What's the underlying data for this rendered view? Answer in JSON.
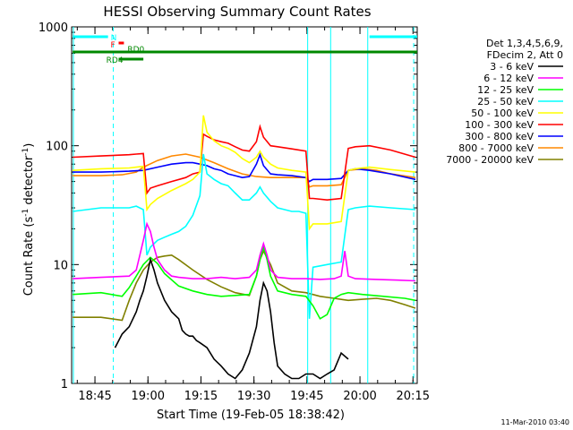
{
  "chart_data": {
    "type": "line",
    "title": "HESSI Observing Summary Count Rates",
    "xlabel": "Start Time (19-Feb-05 18:38:42)",
    "ylabel_main": "Count Rate (s",
    "ylabel_sup1": "-1",
    "ylabel_mid": " detector",
    "ylabel_sup2": "-1",
    "ylabel_end": ")",
    "yscale": "log",
    "ylim": [
      1,
      1000
    ],
    "xlim_min": [
      -0.3,
      97.5
    ],
    "x_unit": "minutes after 18:38:42",
    "xticks": [
      {
        "label": "18:45",
        "min": 6.3
      },
      {
        "label": "19:00",
        "min": 21.3
      },
      {
        "label": "19:15",
        "min": 36.3
      },
      {
        "label": "19:30",
        "min": 51.3
      },
      {
        "label": "19:45",
        "min": 66.3
      },
      {
        "label": "20:00",
        "min": 81.3
      },
      {
        "label": "20:15",
        "min": 96.3
      }
    ],
    "yticks": [
      {
        "label": "1",
        "value": 1
      },
      {
        "label": "10",
        "value": 10
      },
      {
        "label": "100",
        "value": 100
      },
      {
        "label": "1000",
        "value": 1000
      }
    ],
    "legend_header": [
      "Det 1,3,4,5,6,9,",
      "FDecim 2, Att 0"
    ],
    "legend_placement": "right",
    "series": [
      {
        "name": "3 - 6 keV",
        "color": "#000000",
        "x": [
          12,
          14,
          16,
          18,
          19,
          20,
          21,
          22,
          23,
          24,
          26,
          28,
          30,
          31,
          32,
          33,
          34,
          35,
          36,
          38,
          40,
          42,
          44,
          46,
          48,
          50,
          52,
          53,
          54,
          55,
          56,
          57,
          58,
          60,
          62,
          64,
          66,
          68,
          70,
          72,
          74,
          76,
          78
        ],
        "y": [
          2,
          2.6,
          3,
          4,
          5,
          6,
          8,
          11,
          9,
          7,
          5,
          4,
          3.5,
          2.8,
          2.6,
          2.5,
          2.5,
          2.3,
          2.2,
          2,
          1.6,
          1.4,
          1.2,
          1.1,
          1.3,
          1.8,
          3,
          5,
          7,
          6,
          4,
          2.2,
          1.4,
          1.2,
          1.1,
          1.1,
          1.2,
          1.2,
          1.1,
          1.2,
          1.3,
          1.8,
          1.6
        ]
      },
      {
        "name": "6 - 12 keV",
        "color": "#ff00ff",
        "x": [
          0,
          8,
          16,
          18,
          19,
          20,
          21,
          22,
          23,
          24,
          26,
          28,
          30,
          34,
          38,
          42,
          46,
          50,
          52,
          53,
          54,
          55,
          56,
          58,
          62,
          66,
          70,
          74,
          76,
          77,
          78,
          80,
          86,
          92,
          97
        ],
        "y": [
          7.6,
          7.8,
          8,
          9,
          12,
          16,
          22,
          19,
          14,
          11,
          9,
          8,
          7.8,
          7.6,
          7.6,
          7.8,
          7.6,
          7.8,
          9,
          12,
          15,
          12,
          9,
          7.8,
          7.6,
          7.6,
          7.5,
          7.6,
          8,
          13,
          8,
          7.6,
          7.5,
          7.4,
          7.3
        ]
      },
      {
        "name": "12 - 25 keV",
        "color": "#00ff00",
        "x": [
          0,
          8,
          14,
          16,
          18,
          20,
          22,
          24,
          26,
          30,
          34,
          38,
          42,
          46,
          50,
          52,
          53,
          54,
          55,
          56,
          58,
          62,
          66,
          68,
          70,
          72,
          74,
          76,
          78,
          82,
          88,
          94,
          97
        ],
        "y": [
          5.6,
          5.8,
          5.4,
          6.4,
          8,
          10,
          11.5,
          10.2,
          8.4,
          6.6,
          6,
          5.6,
          5.4,
          5.5,
          5.6,
          8,
          11,
          14,
          11,
          8,
          6,
          5.6,
          5.4,
          4.5,
          3.5,
          3.8,
          5.2,
          5.6,
          5.8,
          5.6,
          5.4,
          5.2,
          5
        ]
      },
      {
        "name": "25 - 50 keV",
        "color": "#00ffff",
        "x": [
          0,
          8,
          16,
          18,
          20,
          21,
          22,
          24,
          26,
          28,
          30,
          32,
          34,
          36,
          37,
          38,
          40,
          42,
          44,
          46,
          48,
          50,
          52,
          53,
          54,
          56,
          58,
          60,
          62,
          64,
          66,
          67,
          68,
          72,
          76,
          78,
          80,
          84,
          90,
          97
        ],
        "y": [
          28,
          30,
          30,
          31,
          29,
          12,
          14,
          16,
          17,
          18,
          19,
          21,
          26,
          38,
          85,
          58,
          52,
          48,
          46,
          40,
          35,
          35,
          40,
          45,
          40,
          34,
          30,
          29,
          28,
          28,
          27,
          3.5,
          9.5,
          10,
          10.5,
          29,
          30,
          31,
          30,
          29
        ]
      },
      {
        "name": "50 - 100 keV",
        "color": "#ffff00",
        "x": [
          0,
          8,
          16,
          18,
          20,
          21,
          22,
          24,
          28,
          32,
          34,
          36,
          37,
          38,
          40,
          42,
          44,
          46,
          48,
          50,
          52,
          53,
          54,
          56,
          58,
          62,
          66,
          67,
          68,
          72,
          76,
          78,
          80,
          84,
          90,
          97
        ],
        "y": [
          62,
          64,
          65,
          66,
          67,
          29,
          32,
          36,
          42,
          48,
          52,
          60,
          180,
          130,
          110,
          100,
          95,
          88,
          78,
          72,
          80,
          90,
          80,
          70,
          65,
          62,
          60,
          20,
          22,
          22,
          23,
          62,
          64,
          66,
          63,
          60
        ]
      },
      {
        "name": "100 - 300 keV",
        "color": "#ff0000",
        "x": [
          0,
          8,
          16,
          18,
          20,
          21,
          22,
          24,
          28,
          32,
          34,
          36,
          37,
          38,
          40,
          42,
          44,
          46,
          48,
          50,
          52,
          53,
          54,
          56,
          58,
          62,
          66,
          67,
          68,
          72,
          76,
          78,
          80,
          84,
          90,
          97
        ],
        "y": [
          80,
          82,
          84,
          85,
          86,
          40,
          44,
          46,
          50,
          54,
          58,
          60,
          125,
          120,
          112,
          108,
          105,
          98,
          92,
          90,
          108,
          145,
          118,
          100,
          98,
          94,
          90,
          36,
          36,
          35,
          36,
          95,
          98,
          100,
          92,
          80
        ]
      },
      {
        "name": "300 - 800 keV",
        "color": "#0000ff",
        "x": [
          0,
          8,
          16,
          20,
          24,
          28,
          32,
          34,
          36,
          38,
          40,
          42,
          44,
          46,
          48,
          50,
          52,
          53,
          54,
          56,
          58,
          62,
          66,
          67,
          68,
          72,
          76,
          78,
          80,
          84,
          90,
          97
        ],
        "y": [
          60,
          60,
          61,
          62,
          66,
          70,
          72,
          72,
          70,
          68,
          64,
          62,
          58,
          56,
          54,
          55,
          70,
          84,
          68,
          58,
          57,
          56,
          54,
          50,
          52,
          52,
          53,
          62,
          64,
          62,
          58,
          52
        ]
      },
      {
        "name": "800 - 7000 keV",
        "color": "#ff8800",
        "x": [
          0,
          8,
          14,
          18,
          20,
          24,
          28,
          32,
          36,
          40,
          44,
          48,
          52,
          56,
          60,
          62,
          66,
          67,
          68,
          72,
          76,
          78,
          82,
          86,
          90,
          97
        ],
        "y": [
          56,
          56,
          57,
          60,
          66,
          75,
          82,
          85,
          80,
          72,
          64,
          58,
          55,
          54,
          54,
          54,
          54,
          45,
          46,
          46,
          47,
          62,
          64,
          62,
          58,
          54
        ]
      },
      {
        "name": "7000 - 20000 keV",
        "color": "#808000",
        "x": [
          0,
          8,
          14,
          16,
          18,
          20,
          22,
          24,
          26,
          28,
          30,
          34,
          38,
          42,
          46,
          50,
          52,
          53,
          54,
          56,
          58,
          62,
          66,
          70,
          74,
          78,
          82,
          86,
          90,
          94,
          97
        ],
        "y": [
          3.6,
          3.6,
          3.4,
          5,
          7,
          9,
          10.5,
          11.5,
          11.8,
          12,
          11,
          9,
          7.5,
          6.5,
          5.8,
          5.5,
          8,
          11,
          13,
          10,
          7,
          6,
          5.8,
          5.4,
          5.2,
          5,
          5.1,
          5.2,
          5,
          4.6,
          4.3
        ]
      }
    ],
    "status_bars": [
      {
        "label": "N",
        "color": "#00ffff",
        "x": [
          [
            0,
            10
          ],
          [
            84,
            97.5
          ]
        ],
        "level": "top"
      },
      {
        "label": "F",
        "color": "#ff0000",
        "x": [
          [
            13,
            14.5
          ]
        ],
        "level": "second"
      },
      {
        "label": "RD0",
        "color": "#008800",
        "x": [
          [
            0,
            97.5
          ]
        ],
        "level": "third"
      },
      {
        "label": "RD4",
        "color": "#008800",
        "x": [
          [
            13,
            20
          ]
        ],
        "level": "fourth"
      }
    ],
    "markers": [
      {
        "style": "dashed",
        "color": "#00ffff",
        "x": 11.5
      },
      {
        "style": "solid",
        "color": "#00ffff",
        "x": 0.2
      },
      {
        "style": "solid",
        "color": "#00ffff",
        "x": 66.5
      },
      {
        "style": "solid",
        "color": "#00ffff",
        "x": 73
      },
      {
        "style": "solid",
        "color": "#00ffff",
        "x": 83.5
      },
      {
        "style": "dashed",
        "color": "#00ffff",
        "x": 96.5
      }
    ]
  },
  "footer": {
    "timestamp": "11-Mar-2010 03:40"
  }
}
